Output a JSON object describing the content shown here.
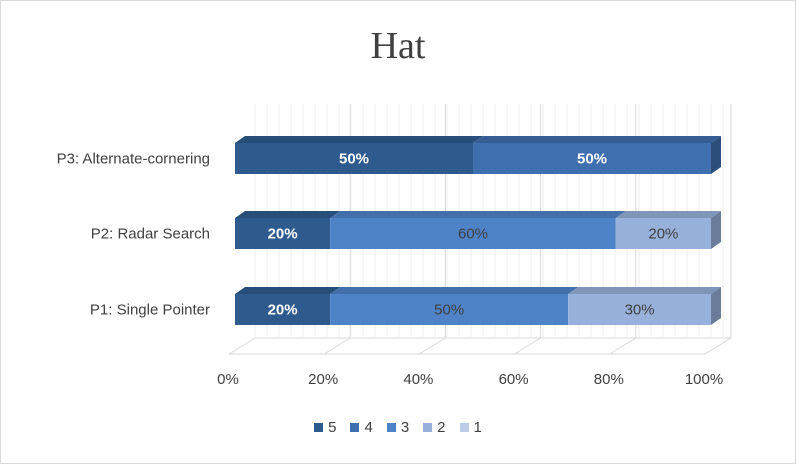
{
  "chart_data": {
    "type": "bar",
    "orientation": "horizontal",
    "stacked": "100%",
    "title": "Hat",
    "categories": [
      "P3: Alternate-cornering",
      "P2: Radar Search",
      "P1: Single Pointer"
    ],
    "series": [
      {
        "name": "5",
        "color": "#2e5a8e",
        "values": [
          50,
          20,
          20
        ]
      },
      {
        "name": "4",
        "color": "#3f6faf",
        "values": [
          50,
          0,
          0
        ]
      },
      {
        "name": "3",
        "color": "#4f83c8",
        "values": [
          0,
          60,
          50
        ]
      },
      {
        "name": "2",
        "color": "#97b1da",
        "values": [
          0,
          20,
          30
        ]
      },
      {
        "name": "1",
        "color": "#bccce8",
        "values": [
          0,
          0,
          0
        ]
      }
    ],
    "data_labels": [
      [
        "50%",
        "50%",
        "",
        "",
        ""
      ],
      [
        "20%",
        "",
        "60%",
        "20%",
        ""
      ],
      [
        "20%",
        "",
        "50%",
        "30%",
        ""
      ]
    ],
    "xticks": [
      "0%",
      "20%",
      "40%",
      "60%",
      "80%",
      "100%"
    ],
    "xlim": [
      0,
      100
    ],
    "grid": true,
    "legend_position": "bottom"
  }
}
